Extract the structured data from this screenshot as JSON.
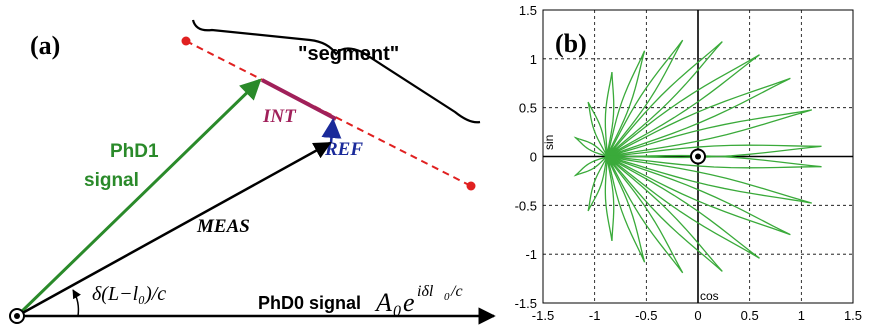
{
  "panel_a": {
    "label": "(a)",
    "segment_label": "\"segment\"",
    "phd1_line1": "PhD1",
    "phd1_line2": "signal",
    "int_label": "INT",
    "ref_label": "REF",
    "meas_label": "MEAS",
    "angle_label": "δ(L−l₀)/c",
    "phd0_label": "PhD0 signal",
    "phd0_formula_base": "A",
    "phd0_formula_sub": "0",
    "phd0_formula_e": "e",
    "phd0_formula_exp": "iδl",
    "phd0_formula_exp_sub": "0",
    "phd0_formula_exp_tail": "/c",
    "colors": {
      "green": "#2a8a2a",
      "magenta": "#a0205a",
      "blue": "#1a2a9a",
      "red": "#e02020",
      "black": "#000000"
    }
  },
  "panel_b": {
    "label": "(b)",
    "xlabel": "cos",
    "ylabel": "sin",
    "xlim": [
      -1.5,
      1.5
    ],
    "ylim": [
      -1.5,
      1.5
    ],
    "x_ticks": [
      "-1.5",
      "-1",
      "-0.5",
      "0",
      "0.5",
      "1",
      "1.5"
    ],
    "y_ticks": [
      "1.5",
      "1",
      "0.5",
      "0",
      "-0.5",
      "-1",
      "-1.5"
    ],
    "grid": "dashed",
    "curve_color": "#3aaa3a"
  },
  "chart_data": {
    "type": "line",
    "xlabel": "cos",
    "ylabel": "sin",
    "xlim": [
      -1.5,
      1.5
    ],
    "ylim": [
      -1.5,
      1.5
    ],
    "grid": true,
    "description_free": true,
    "loops": {
      "anchor": [
        -0.88,
        0.0
      ],
      "count": 20,
      "tip_radius": 1.2,
      "tip_angle_start_deg": 5,
      "tip_angle_end_deg": 355,
      "loop_half_width": 0.045
    },
    "origin_marker": [
      0,
      0
    ]
  }
}
